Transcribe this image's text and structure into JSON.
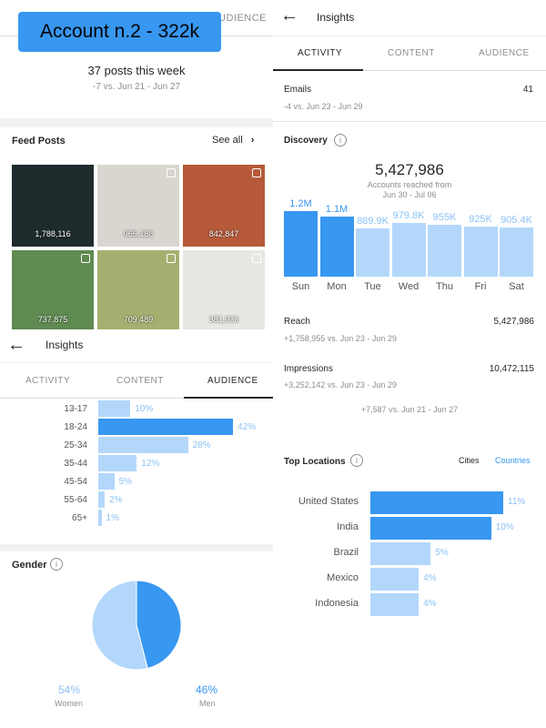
{
  "badge": {
    "title": "Account n.2 - 322k"
  },
  "tl": {
    "tab_fragment": "UDIENCE",
    "posts_week": "37 posts this week",
    "posts_compare": "-7 vs. Jun 21 - Jun 27",
    "feed_title": "Feed Posts",
    "see_all": "See all",
    "thumbs": [
      {
        "value": "1,788,116",
        "color": "#1e2b2c"
      },
      {
        "value": "965,188",
        "color": "#d9d6d0"
      },
      {
        "value": "842,847",
        "color": "#b65a3a"
      },
      {
        "value": "737,875",
        "color": "#5f8a50"
      },
      {
        "value": "709,489",
        "color": "#a4b070"
      },
      {
        "value": "381,936",
        "color": "#e8e6e2"
      }
    ]
  },
  "aud": {
    "title": "Insights",
    "tabs": [
      "ACTIVITY",
      "CONTENT",
      "AUDIENCE"
    ],
    "age": [
      {
        "label": "13-17",
        "value": 10,
        "text": "10%"
      },
      {
        "label": "18-24",
        "value": 42,
        "text": "42%"
      },
      {
        "label": "25-34",
        "value": 28,
        "text": "28%"
      },
      {
        "label": "35-44",
        "value": 12,
        "text": "12%"
      },
      {
        "label": "45-54",
        "value": 5,
        "text": "5%"
      },
      {
        "label": "55-64",
        "value": 2,
        "text": "2%"
      },
      {
        "label": "65+",
        "value": 1,
        "text": "1%"
      }
    ],
    "gender_title": "Gender",
    "gender": [
      {
        "name": "Women",
        "value": 54,
        "text": "54%",
        "color": "#b3d7fb"
      },
      {
        "name": "Men",
        "value": 46,
        "text": "46%",
        "color": "#3897f0"
      }
    ]
  },
  "ins": {
    "title": "Insights",
    "tabs": [
      "ACTIVITY",
      "CONTENT",
      "AUDIENCE"
    ],
    "emails": {
      "label": "Emails",
      "value": "41",
      "compare": "-4 vs. Jun 23 - Jun 29"
    },
    "discovery_title": "Discovery",
    "reach_total": "5,427,986",
    "reach_caption": "Accounts reached from",
    "reach_range": "Jun 30 - Jul 06",
    "days": [
      {
        "day": "Sun",
        "value": 1200000,
        "text": "1.2M",
        "strong": true
      },
      {
        "day": "Mon",
        "value": 1100000,
        "text": "1.1M",
        "strong": true
      },
      {
        "day": "Tue",
        "value": 889900,
        "text": "889.9K",
        "strong": false
      },
      {
        "day": "Wed",
        "value": 979800,
        "text": "979.8K",
        "strong": false
      },
      {
        "day": "Thu",
        "value": 955000,
        "text": "955K",
        "strong": false
      },
      {
        "day": "Fri",
        "value": 925000,
        "text": "925K",
        "strong": false
      },
      {
        "day": "Sat",
        "value": 905400,
        "text": "905.4K",
        "strong": false
      }
    ],
    "reach": {
      "label": "Reach",
      "value": "5,427,986",
      "compare": "+1,758,955 vs. Jun 23 - Jun 29"
    },
    "impressions": {
      "label": "Impressions",
      "value": "10,472,115",
      "compare": "+3,252,142 vs. Jun 23 - Jun 29"
    },
    "partial_compare": "+7,587 vs. Jun 21 - Jun 27",
    "locations_title": "Top Locations",
    "loc_tabs": [
      "Cities",
      "Countries"
    ],
    "locations": [
      {
        "name": "United States",
        "value": 11,
        "text": "11%",
        "strong": true
      },
      {
        "name": "India",
        "value": 10,
        "text": "10%",
        "strong": true
      },
      {
        "name": "Brazil",
        "value": 5,
        "text": "5%",
        "strong": false
      },
      {
        "name": "Mexico",
        "value": 4,
        "text": "4%",
        "strong": false
      },
      {
        "name": "Indonesia",
        "value": 4,
        "text": "4%",
        "strong": false
      }
    ]
  }
}
